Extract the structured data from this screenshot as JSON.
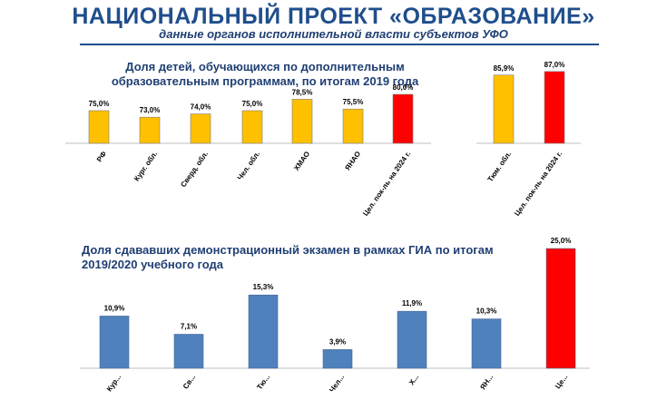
{
  "header": {
    "title": "НАЦИОНАЛЬНЫЙ ПРОЕКТ «ОБРАЗОВАНИЕ»",
    "subtitle": "данные органов исполнительной власти субъектов УФО"
  },
  "colors": {
    "title": "#1f4e8c",
    "yellow": "#ffc000",
    "red": "#ff0000",
    "blue": "#4f81bd",
    "text": "#1f3f73"
  },
  "chart_data": [
    {
      "type": "bar",
      "title": "Доля детей, обучающихся по дополнительным образовательным программам, по итогам 2019 года",
      "categories": [
        "РФ",
        "Кург. обл.",
        "Сверд. обл.",
        "Чел. обл.",
        "ХМАО",
        "ЯНАО",
        "Цел. пок-ль на 2024 г.",
        "Тюм. обл.",
        "Цел. пок-ль на 2024 г."
      ],
      "values": [
        75.0,
        73.0,
        74.0,
        75.0,
        78.5,
        75.5,
        80.0,
        85.9,
        87.0
      ],
      "labels": [
        "75,0%",
        "73,0%",
        "74,0%",
        "75,0%",
        "78,5%",
        "75,5%",
        "80,0%",
        "85,9%",
        "87,0%"
      ],
      "colors": [
        "yellow",
        "yellow",
        "yellow",
        "yellow",
        "yellow",
        "yellow",
        "red",
        "yellow",
        "red"
      ],
      "ylim": [
        65,
        90
      ],
      "grid": false
    },
    {
      "type": "bar",
      "title": "Доля сдававших демонстрационный экзамен в рамках ГИА по итогам 2019/2020 учебного года",
      "categories": [
        "Кур...",
        "Св...",
        "Тю...",
        "Чел...",
        "Х...",
        "ЯН...",
        "Це..."
      ],
      "values": [
        10.9,
        7.1,
        15.3,
        3.9,
        11.9,
        10.3,
        25.0
      ],
      "labels": [
        "10,9%",
        "7,1%",
        "15,3%",
        "3,9%",
        "11,9%",
        "10,3%",
        "25,0%"
      ],
      "colors": [
        "blue",
        "blue",
        "blue",
        "blue",
        "blue",
        "blue",
        "red"
      ],
      "ylim": [
        0,
        25
      ],
      "grid": false
    }
  ]
}
